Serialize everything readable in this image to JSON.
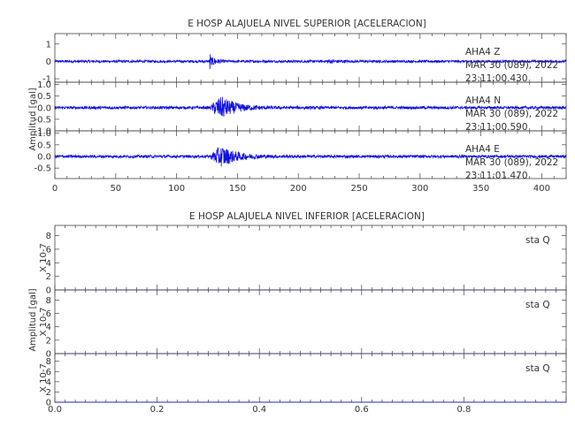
{
  "chart_data": [
    {
      "type": "line",
      "title": "E HOSP ALAJUELA NIVEL SUPERIOR [ACELERACION]",
      "ylabel": "Amplitud [gal]",
      "xlim": [
        0,
        420
      ],
      "x_ticks": [
        0,
        50,
        100,
        150,
        200,
        250,
        300,
        350,
        400
      ],
      "panels": [
        {
          "component": "Z",
          "station_label": "AHA4    Z",
          "date_label": "MAR 30 (089), 2022",
          "time_label": "23:11:00.430",
          "ylim": [
            -1.2,
            1.6
          ],
          "y_ticks": [
            "1",
            "0",
            "-1"
          ],
          "y_tick_values": [
            1,
            0,
            -1
          ],
          "noise_amplitude": 0.07,
          "wave_packets": [
            {
              "t": 127,
              "dur": 1.5,
              "amp": 1.4,
              "tau": 0.6
            },
            {
              "t": 128,
              "dur": 10,
              "amp": 0.35,
              "tau": 4
            },
            {
              "t": 222,
              "dur": 12,
              "amp": 0.12,
              "tau": 6
            }
          ]
        },
        {
          "component": "N",
          "station_label": "AHA4    N",
          "date_label": "MAR 30 (089), 2022",
          "time_label": "23:11:00.590",
          "ylim": [
            -1.0,
            1.1
          ],
          "y_ticks": [
            "1.0",
            "0.5",
            "0.0",
            "-0.5",
            "-1.0"
          ],
          "y_tick_values": [
            1.0,
            0.5,
            0.0,
            -0.5,
            -1.0
          ],
          "noise_amplitude": 0.06,
          "wave_packets": [
            {
              "t": 128,
              "dur": 40,
              "amp": 0.95,
              "tau": 12
            }
          ]
        },
        {
          "component": "E",
          "station_label": "AHA4    E",
          "date_label": "MAR 30 (089), 2022",
          "time_label": "23:11:01.470",
          "ylim": [
            -0.95,
            1.1
          ],
          "y_ticks": [
            "1.0",
            "0.5",
            "0.0",
            "-0.5"
          ],
          "y_tick_values": [
            1.0,
            0.5,
            0.0,
            -0.5
          ],
          "noise_amplitude": 0.06,
          "wave_packets": [
            {
              "t": 128,
              "dur": 40,
              "amp": 0.9,
              "tau": 12
            }
          ]
        }
      ]
    },
    {
      "type": "line",
      "title": "E HOSP ALAJUELA NIVEL INFERIOR [ACELERACION]",
      "ylabel": "Amplitud [gal]",
      "xlim": [
        0,
        1
      ],
      "x_ticks": [
        "0.0",
        "0.2",
        "0.4",
        "0.6",
        "0.8"
      ],
      "x_tick_values": [
        0.0,
        0.2,
        0.4,
        0.6,
        0.8
      ],
      "panels": [
        {
          "station_label": "sta    Q",
          "scale_label": "X 10-7",
          "ylim": [
            0,
            9.5
          ],
          "y_ticks": [
            "8",
            "6",
            "4",
            "2",
            "0"
          ],
          "y_tick_values": [
            8,
            6,
            4,
            2,
            0
          ],
          "values": [
            0,
            0
          ]
        },
        {
          "station_label": "sta    Q",
          "scale_label": "X 10-7",
          "ylim": [
            0,
            9.5
          ],
          "y_ticks": [
            "8",
            "6",
            "4",
            "2",
            "0"
          ],
          "y_tick_values": [
            8,
            6,
            4,
            2,
            0
          ],
          "values": [
            0,
            0
          ]
        },
        {
          "station_label": "sta    Q",
          "scale_label": "X 10-7",
          "ylim": [
            0,
            9.5
          ],
          "y_ticks": [
            "8",
            "6",
            "4",
            "2",
            "0"
          ],
          "y_tick_values": [
            8,
            6,
            4,
            2,
            0
          ],
          "values": [
            0,
            0
          ]
        }
      ]
    }
  ],
  "colors": {
    "trace": "#1010e0",
    "axis": "#444444",
    "text": "#333333"
  }
}
